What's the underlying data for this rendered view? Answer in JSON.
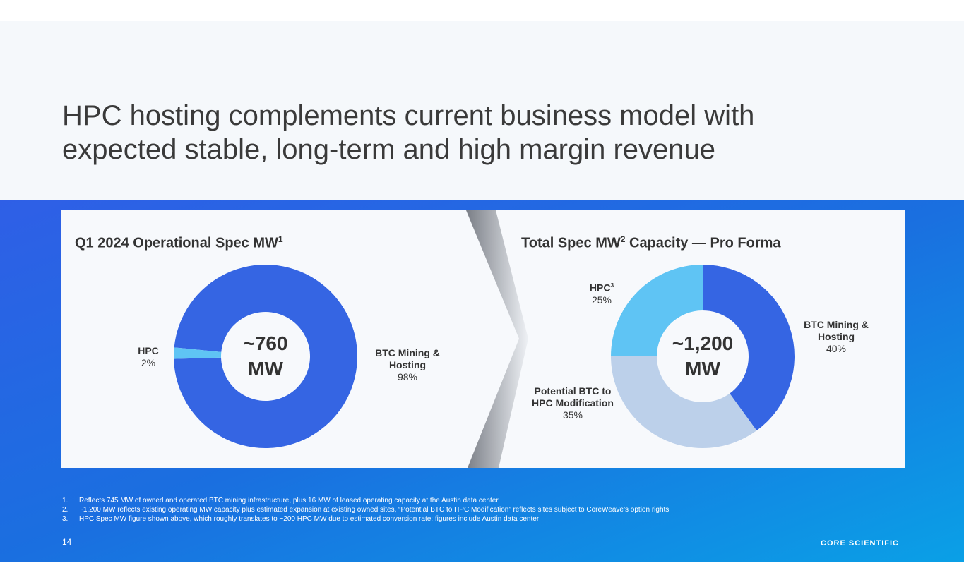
{
  "title": [
    "HPC hosting complements current business model with",
    "expected stable, long-term and high margin revenue"
  ],
  "chart_data": [
    {
      "type": "pie",
      "title": "Q1 2024 Operational Spec MW",
      "title_note": "1",
      "center_label": [
        "~760",
        "MW"
      ],
      "categories": [
        "BTC Mining & Hosting",
        "HPC"
      ],
      "category_notes": [
        null,
        null
      ],
      "values": [
        98,
        2
      ],
      "value_labels": [
        "98%",
        "2%"
      ],
      "colors": [
        "#3565e3",
        "#5fc4f4"
      ],
      "start_angle": 275.6
    },
    {
      "type": "pie",
      "title": "Total Spec MW",
      "title_note": "2",
      "title_suffix": "Capacity — Pro Forma",
      "center_label": [
        "~1,200",
        "MW"
      ],
      "categories": [
        "BTC Mining & Hosting",
        "Potential BTC to HPC Modification",
        "HPC"
      ],
      "category_notes": [
        null,
        null,
        "3"
      ],
      "values": [
        40,
        35,
        25
      ],
      "value_labels": [
        "40%",
        "35%",
        "25%"
      ],
      "colors": [
        "#3565e3",
        "#bcd0ea",
        "#5fc4f4"
      ],
      "start_angle": 0
    }
  ],
  "footnotes": [
    {
      "number": "1.",
      "text": "Reflects 745 MW of owned and operated BTC mining infrastructure, plus 16 MW of leased operating capacity at the Austin data center"
    },
    {
      "number": "2.",
      "text": "~1,200 MW reflects existing operating MW capacity plus estimated expansion at existing owned sites, “Potential BTC to HPC Modification” reflects sites subject to CoreWeave’s option rights"
    },
    {
      "number": "3.",
      "text": "HPC Spec MW figure shown above, which roughly translates to ~200 HPC MW due to estimated conversion rate; figures include Austin data center"
    }
  ],
  "page_number": "14",
  "logo": "CORE SCIENTIFIC"
}
